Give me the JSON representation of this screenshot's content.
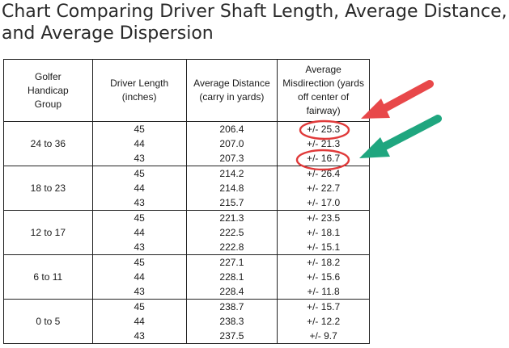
{
  "title_line1": "Chart Comparing Driver Shaft Length, Average Distance,",
  "title_line2": "and Average Dispersion",
  "headers": {
    "group": "Golfer Handicap Group",
    "length": "Driver Length (inches)",
    "distance": "Average Distance (carry in yards)",
    "misdirection": "Average Misdirection (yards off center of fairway)"
  },
  "groups": [
    {
      "label": "24 to 36",
      "rows": [
        [
          "45",
          "206.4",
          "+/- 25.3"
        ],
        [
          "44",
          "207.0",
          "+/- 21.3"
        ],
        [
          "43",
          "207.3",
          "+/- 16.7"
        ]
      ]
    },
    {
      "label": "18 to 23",
      "rows": [
        [
          "45",
          "214.2",
          "+/- 26.4"
        ],
        [
          "44",
          "214.8",
          "+/- 22.7"
        ],
        [
          "43",
          "215.7",
          "+/- 17.0"
        ]
      ]
    },
    {
      "label": "12 to 17",
      "rows": [
        [
          "45",
          "221.3",
          "+/- 23.5"
        ],
        [
          "44",
          "222.5",
          "+/- 18.1"
        ],
        [
          "43",
          "222.8",
          "+/- 15.1"
        ]
      ]
    },
    {
      "label": "6 to 11",
      "rows": [
        [
          "45",
          "227.1",
          "+/- 18.2"
        ],
        [
          "44",
          "228.1",
          "+/- 15.6"
        ],
        [
          "43",
          "228.4",
          "+/- 11.8"
        ]
      ]
    },
    {
      "label": "0 to 5",
      "rows": [
        [
          "45",
          "238.7",
          "+/- 15.7"
        ],
        [
          "44",
          "238.3",
          "+/- 12.2"
        ],
        [
          "43",
          "237.5",
          "+/- 9.7"
        ]
      ]
    }
  ],
  "colors": {
    "circle": "#e03a3a",
    "red_arrow": "#e8484a",
    "green_arrow": "#1fa67f"
  }
}
